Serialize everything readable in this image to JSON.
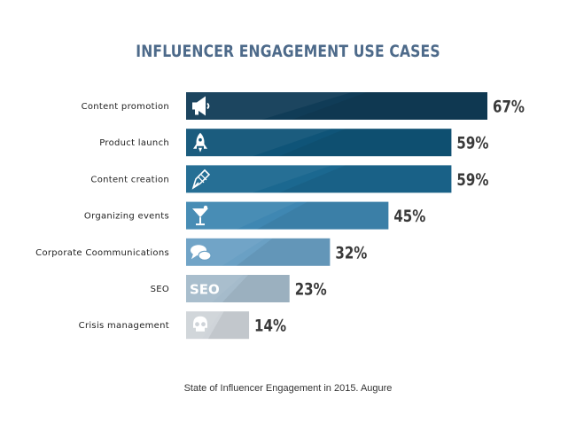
{
  "chart_data": {
    "type": "bar",
    "orientation": "horizontal",
    "title": "INFLUENCER ENGAGEMENT USE CASES",
    "categories": [
      "Content promotion",
      "Product launch",
      "Content creation",
      "Organizing events",
      "Corporate Coommunications",
      "SEO",
      "Crisis management"
    ],
    "values": [
      67,
      59,
      59,
      45,
      32,
      23,
      14
    ],
    "value_labels": [
      "67%",
      "59%",
      "59%",
      "45%",
      "32%",
      "23%",
      "14%"
    ],
    "icons": [
      "megaphone-icon",
      "rocket-icon",
      "pen-nib-icon",
      "cocktail-glass-icon",
      "speech-bubbles-icon",
      "seo-text-icon",
      "skull-icon"
    ],
    "seo_icon_text": "SEO",
    "colors": [
      "#103c57",
      "#0f5478",
      "#1b6890",
      "#3f87b2",
      "#6aa0c4",
      "#a5bbcb",
      "#cfd4d9"
    ],
    "xlim": [
      0,
      100
    ],
    "grid": false,
    "legend": "none",
    "source": "State of Influencer Engagement in 2015. Augure"
  }
}
